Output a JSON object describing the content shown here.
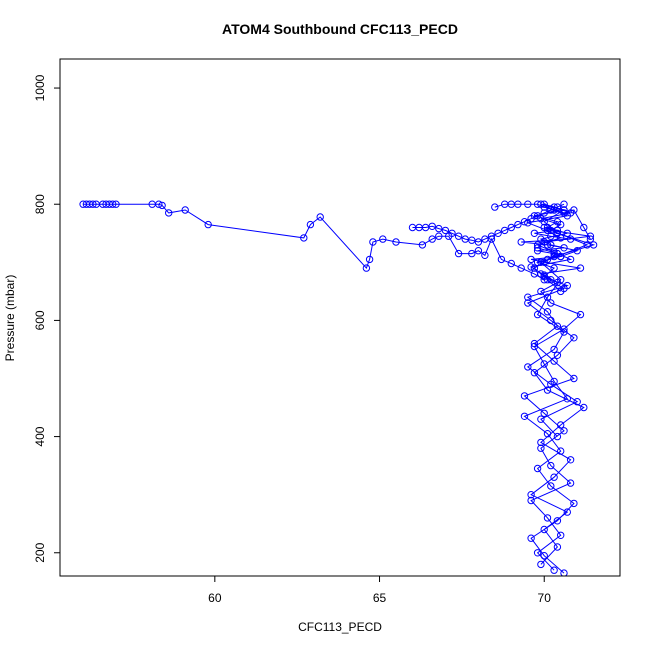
{
  "chart_data": {
    "type": "line",
    "title": "ATOM4 Southbound CFC113_PECD",
    "xlabel": "CFC113_PECD",
    "ylabel": "Pressure (mbar)",
    "xlim": [
      55.3,
      72.3
    ],
    "ylim": [
      1050,
      160
    ],
    "y_reversed": true,
    "x_ticks": [
      60,
      65,
      70
    ],
    "y_ticks": [
      200,
      400,
      600,
      800,
      1000
    ],
    "grid": false,
    "legend": "none",
    "marker": "open-circle",
    "colors": {
      "series": "#0000ff",
      "axis": "#000000"
    },
    "series": [
      {
        "x": [
          70.3,
          69.8,
          70.5,
          70.1,
          69.6,
          70.8,
          70.2,
          69.9,
          70.6,
          70.0,
          69.4,
          70.9,
          70.3,
          69.7,
          70.4,
          70.1,
          69.5,
          70.7,
          70.2,
          69.9,
          71.1,
          70.0,
          69.6,
          70.5,
          70.3,
          69.8,
          70.6,
          70.1,
          69.3,
          70.8,
          70.2,
          69.7,
          70.4,
          70.0,
          71.3,
          69.9,
          70.5,
          70.1,
          69.8,
          70.6,
          70.3,
          69.5,
          70.2,
          71.0,
          69.9,
          70.4
        ],
        "y": [
          170,
          200,
          230,
          260,
          290,
          320,
          350,
          380,
          410,
          440,
          470,
          500,
          530,
          560,
          590,
          615,
          640,
          660,
          670,
          680,
          690,
          700,
          705,
          710,
          715,
          720,
          725,
          730,
          735,
          740,
          745,
          750,
          755,
          760,
          730,
          700,
          670,
          640,
          610,
          580,
          550,
          520,
          490,
          460,
          430,
          400
        ]
      },
      {
        "x": [
          69.9,
          70.4,
          70.0,
          70.7,
          69.6,
          70.3,
          70.8,
          69.9,
          70.5,
          71.2,
          70.1,
          69.7,
          70.4,
          70.9,
          70.2,
          69.5,
          70.6,
          70.0,
          70.3,
          69.8,
          70.5,
          71.0,
          70.2,
          69.9,
          70.7,
          70.1,
          70.4,
          69.7,
          70.6,
          70.0,
          70.3,
          70.8,
          69.9,
          70.5,
          70.2,
          71.4,
          70.0,
          69.8,
          70.4,
          70.1
        ],
        "y": [
          180,
          210,
          240,
          270,
          300,
          330,
          360,
          390,
          420,
          450,
          480,
          510,
          540,
          570,
          600,
          630,
          655,
          675,
          690,
          700,
          710,
          720,
          730,
          740,
          750,
          760,
          770,
          780,
          790,
          800,
          795,
          785,
          775,
          765,
          755,
          745,
          735,
          725,
          715,
          705
        ]
      },
      {
        "x": [
          70.6,
          70.0,
          69.6,
          70.4,
          70.9,
          70.2,
          69.8,
          70.5,
          70.1,
          69.4,
          70.7,
          70.3,
          70.0,
          69.7,
          70.6,
          71.1,
          70.2,
          69.9,
          70.4,
          70.0,
          69.6,
          70.8,
          70.3,
          69.8,
          70.5,
          70.1,
          69.5,
          70.7,
          70.2,
          69.9,
          70.6,
          70.0,
          70.4,
          71.5,
          70.3,
          69.7,
          70.1,
          70.5
        ],
        "y": [
          165,
          195,
          225,
          255,
          285,
          315,
          345,
          375,
          405,
          435,
          465,
          495,
          525,
          555,
          585,
          610,
          630,
          650,
          665,
          678,
          692,
          705,
          718,
          730,
          742,
          755,
          768,
          780,
          792,
          800,
          790,
          770,
          750,
          730,
          710,
          690,
          670,
          650
        ]
      },
      {
        "x": [
          56.0,
          56.1,
          56.2,
          56.3,
          56.4,
          56.6,
          56.7,
          56.8,
          56.9,
          57.0,
          58.1,
          58.3,
          58.4,
          58.6,
          59.1,
          59.8,
          62.7,
          62.9,
          63.2,
          64.6,
          64.7,
          64.8,
          65.1,
          65.5,
          66.3,
          66.6,
          66.8,
          67.1,
          67.4,
          67.8,
          68.0,
          68.2,
          68.4,
          68.7,
          69.0,
          69.3,
          69.7,
          70.0
        ],
        "y": [
          800,
          800,
          800,
          800,
          800,
          800,
          800,
          800,
          800,
          800,
          800,
          800,
          798,
          785,
          790,
          765,
          742,
          765,
          778,
          690,
          705,
          735,
          740,
          735,
          730,
          740,
          745,
          745,
          715,
          715,
          720,
          712,
          740,
          705,
          698,
          690,
          680,
          670
        ]
      },
      {
        "x": [
          66.0,
          66.2,
          66.4,
          66.6,
          66.8,
          67.0,
          67.2,
          67.4,
          67.6,
          67.8,
          68.0,
          68.2,
          68.4,
          68.6,
          68.8,
          69.0,
          69.2,
          69.4,
          69.6,
          69.8,
          70.0,
          70.2,
          70.4,
          70.6
        ],
        "y": [
          760,
          760,
          760,
          762,
          758,
          755,
          750,
          745,
          740,
          738,
          735,
          740,
          745,
          750,
          755,
          760,
          765,
          770,
          775,
          780,
          785,
          790,
          795,
          800
        ]
      },
      {
        "x": [
          68.5,
          68.8,
          69.0,
          69.2,
          69.5,
          69.8,
          70.0,
          70.3,
          70.6,
          70.9,
          71.2,
          71.4
        ],
        "y": [
          795,
          800,
          800,
          800,
          800,
          800,
          795,
          790,
          785,
          790,
          760,
          740
        ]
      }
    ]
  }
}
